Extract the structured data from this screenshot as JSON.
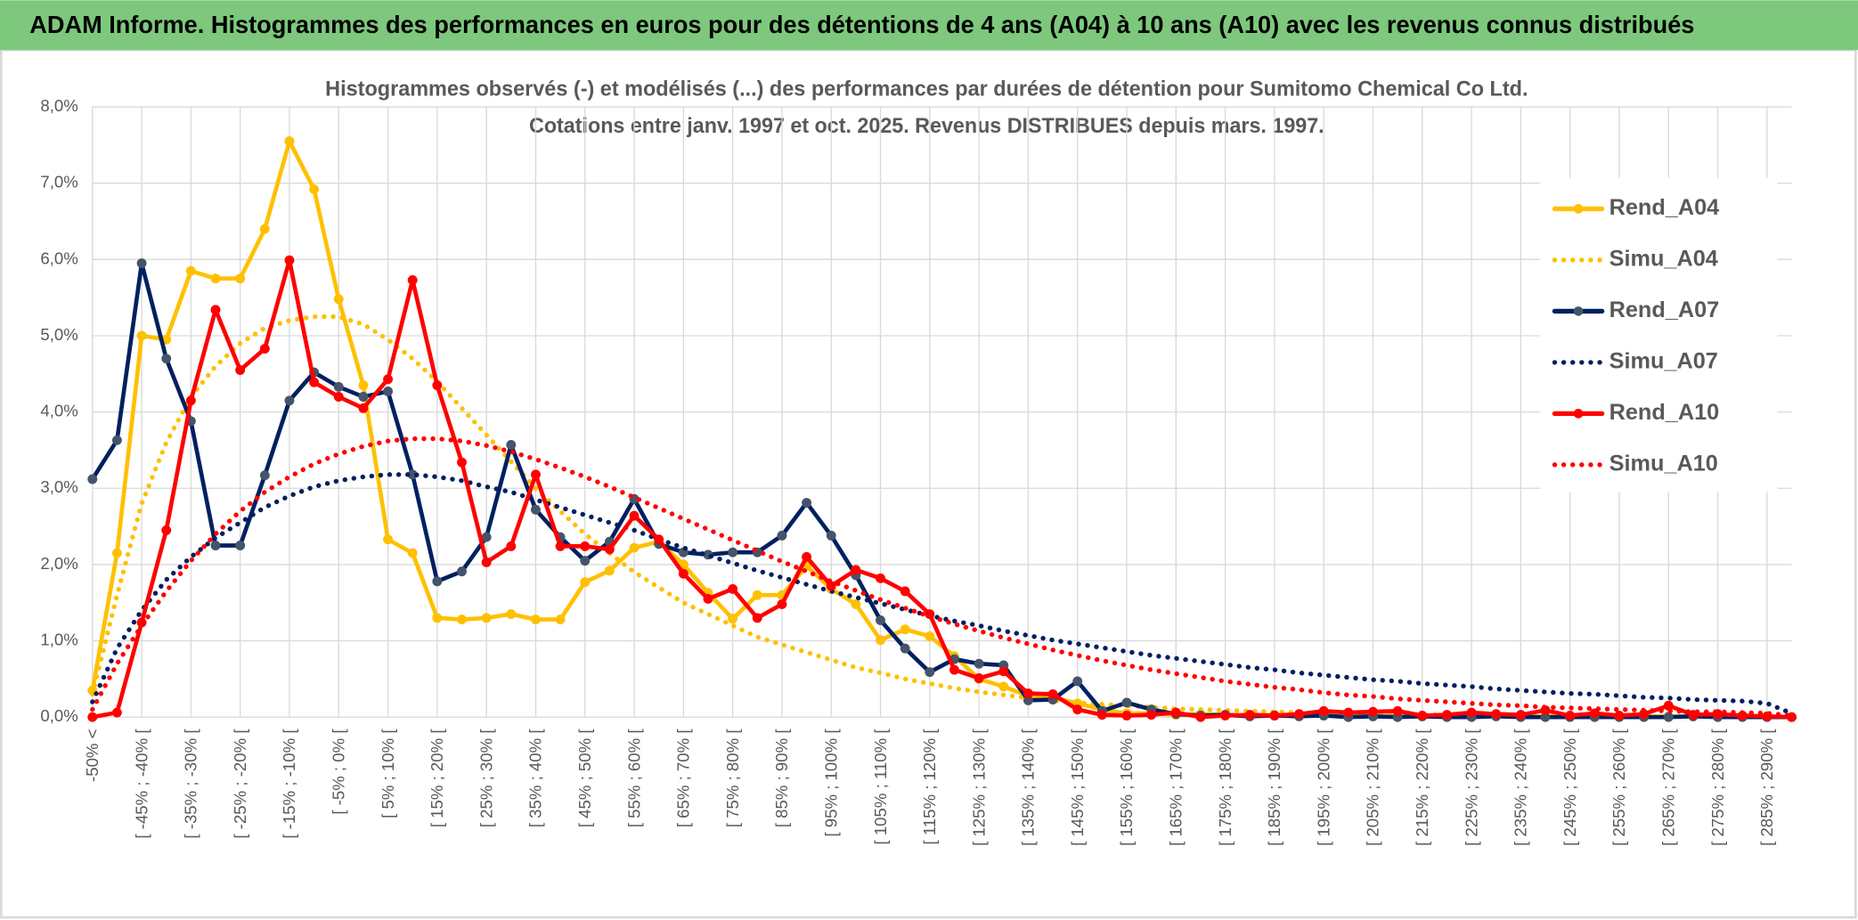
{
  "chart_data": {
    "type": "line",
    "title": "ADAM Informe. Histogrammes des performances en euros pour des détentions de 4 ans (A04) à 10 ans (A10) avec les revenus connus distribués",
    "subtitle": [
      "Histogrammes observés (-) et modélisés (...) des performances par durées de détention pour Sumitomo Chemical Co Ltd.",
      "Cotations entre janv. 1997 et oct. 2025. Revenus DISTRIBUES depuis mars. 1997."
    ],
    "categories": [
      "-50% <",
      null,
      "[ -45% ; -40% [",
      null,
      "[ -35% ; -30% [",
      null,
      "[ -25% ; -20% [",
      null,
      "[ -15% ; -10% [",
      null,
      "[ -5% ; 0% [",
      null,
      "[ 5% ; 10% [",
      null,
      "[ 15% ; 20% [",
      null,
      "[ 25% ; 30% [",
      null,
      "[ 35% ; 40% [",
      null,
      "[ 45% ; 50% [",
      null,
      "[ 55% ; 60% [",
      null,
      "[ 65% ; 70% [",
      null,
      "[ 75% ; 80% [",
      null,
      "[ 85% ; 90% [",
      null,
      "[ 95% ; 100% [",
      null,
      "[ 105% ; 110% [",
      null,
      "[ 115% ; 120% [",
      null,
      "[ 125% ; 130% [",
      null,
      "[ 135% ; 140% [",
      null,
      "[ 145% ; 150% [",
      null,
      "[ 155% ; 160% [",
      null,
      "[ 165% ; 170% [",
      null,
      "[ 175% ; 180% [",
      null,
      "[ 185% ; 190% [",
      null,
      "[ 195% ; 200% [",
      null,
      "[ 205% ; 210% [",
      null,
      "[ 215% ; 220% [",
      null,
      "[ 225% ; 230% [",
      null,
      "[ 235% ; 240% [",
      null,
      "[ 245% ; 250% [",
      null,
      "[ 255% ; 260% [",
      null,
      "[ 265% ; 270% [",
      null,
      "[ 275% ; 280% [",
      null,
      "[ 285% ; 290% [",
      null
    ],
    "ylim": [
      0,
      8
    ],
    "yticks": [
      {
        "value": 0,
        "label": "0,0%"
      },
      {
        "value": 1,
        "label": "1,0%"
      },
      {
        "value": 2,
        "label": "2,0%"
      },
      {
        "value": 3,
        "label": "3,0%"
      },
      {
        "value": 4,
        "label": "4,0%"
      },
      {
        "value": 5,
        "label": "5,0%"
      },
      {
        "value": 6,
        "label": "6,0%"
      },
      {
        "value": 7,
        "label": "7,0%"
      },
      {
        "value": 8,
        "label": "8,0%"
      }
    ],
    "grid": true,
    "legend": "right",
    "series": [
      {
        "name": "Rend_A04",
        "color": "#ffc000",
        "style": "solid",
        "values": [
          0.35,
          2.15,
          5.0,
          4.95,
          5.85,
          5.75,
          5.75,
          6.4,
          7.55,
          6.92,
          5.48,
          4.35,
          2.33,
          2.15,
          1.3,
          1.28,
          1.3,
          1.35,
          1.28,
          1.28,
          1.77,
          1.92,
          2.22,
          2.3,
          2.0,
          1.63,
          1.29,
          1.6,
          1.6,
          1.98,
          1.68,
          1.48,
          1.01,
          1.15,
          1.06,
          0.8,
          0.5,
          0.4,
          0.28,
          0.26,
          0.18,
          0.1,
          0.05,
          0.05,
          0.03,
          0.04,
          0.03,
          0.02,
          0.03,
          0.02,
          0.02,
          0.02,
          0.01,
          0.02,
          0.01,
          0.01,
          0.01,
          0.02,
          0.01,
          0.01,
          0.01,
          0.01,
          0.01,
          0.01,
          0.01,
          0.01,
          0.01,
          0.01,
          0.01,
          0.0
        ]
      },
      {
        "name": "Simu_A04",
        "color": "#ffc000",
        "style": "dotted",
        "values": [
          0.3,
          1.6,
          2.8,
          3.6,
          4.2,
          4.6,
          4.9,
          5.1,
          5.2,
          5.25,
          5.25,
          5.15,
          4.95,
          4.7,
          4.4,
          4.05,
          3.7,
          3.35,
          3.0,
          2.7,
          2.4,
          2.15,
          1.9,
          1.7,
          1.5,
          1.35,
          1.2,
          1.05,
          0.95,
          0.85,
          0.75,
          0.65,
          0.58,
          0.5,
          0.44,
          0.38,
          0.33,
          0.29,
          0.25,
          0.22,
          0.19,
          0.17,
          0.15,
          0.13,
          0.11,
          0.1,
          0.09,
          0.08,
          0.07,
          0.06,
          0.05,
          0.045,
          0.04,
          0.035,
          0.03,
          0.028,
          0.025,
          0.022,
          0.02,
          0.018,
          0.016,
          0.014,
          0.012,
          0.011,
          0.01,
          0.009,
          0.008,
          0.007,
          0.006,
          0.005
        ]
      },
      {
        "name": "Rend_A07",
        "color": "#002060",
        "marker": "#44546a",
        "style": "solid",
        "values": [
          3.12,
          3.63,
          5.95,
          4.7,
          3.88,
          2.25,
          2.25,
          3.17,
          4.15,
          4.52,
          4.33,
          4.2,
          4.27,
          3.18,
          1.78,
          1.91,
          2.36,
          3.57,
          2.72,
          2.36,
          2.05,
          2.3,
          2.86,
          2.27,
          2.16,
          2.13,
          2.16,
          2.16,
          2.38,
          2.81,
          2.38,
          1.86,
          1.27,
          0.9,
          0.59,
          0.76,
          0.7,
          0.68,
          0.22,
          0.23,
          0.47,
          0.08,
          0.19,
          0.1,
          0.04,
          0.02,
          0.03,
          0.01,
          0.02,
          0.01,
          0.02,
          0,
          0.01,
          0,
          0.01,
          0,
          0,
          0.01,
          0,
          0,
          0,
          0,
          0,
          0,
          0,
          0.01,
          0,
          0,
          0,
          0
        ]
      },
      {
        "name": "Simu_A07",
        "color": "#002060",
        "style": "dotted",
        "values": [
          0.2,
          0.9,
          1.4,
          1.8,
          2.1,
          2.35,
          2.55,
          2.75,
          2.9,
          3.02,
          3.1,
          3.15,
          3.18,
          3.18,
          3.15,
          3.1,
          3.02,
          2.95,
          2.85,
          2.75,
          2.65,
          2.55,
          2.45,
          2.33,
          2.22,
          2.12,
          2.02,
          1.92,
          1.83,
          1.74,
          1.65,
          1.57,
          1.49,
          1.41,
          1.33,
          1.26,
          1.2,
          1.13,
          1.07,
          1.01,
          0.96,
          0.91,
          0.86,
          0.81,
          0.77,
          0.73,
          0.69,
          0.65,
          0.62,
          0.58,
          0.55,
          0.52,
          0.49,
          0.47,
          0.44,
          0.42,
          0.4,
          0.37,
          0.35,
          0.33,
          0.31,
          0.3,
          0.28,
          0.26,
          0.25,
          0.23,
          0.22,
          0.21,
          0.18,
          0.05
        ]
      },
      {
        "name": "Rend_A10",
        "color": "#ff0000",
        "style": "solid",
        "values": [
          0,
          0.06,
          1.24,
          2.45,
          4.15,
          5.34,
          4.55,
          4.83,
          5.99,
          4.39,
          4.2,
          4.05,
          4.43,
          5.73,
          4.35,
          3.34,
          2.03,
          2.24,
          3.18,
          2.24,
          2.24,
          2.2,
          2.64,
          2.33,
          1.88,
          1.55,
          1.68,
          1.3,
          1.48,
          2.1,
          1.72,
          1.93,
          1.82,
          1.65,
          1.35,
          0.62,
          0.51,
          0.6,
          0.31,
          0.3,
          0.1,
          0.03,
          0.02,
          0.03,
          0.06,
          0,
          0.02,
          0.03,
          0.02,
          0.04,
          0.08,
          0.06,
          0.07,
          0.08,
          0.02,
          0.03,
          0.06,
          0.04,
          0.03,
          0.09,
          0.02,
          0.05,
          0.02,
          0.04,
          0.15,
          0.03,
          0.04,
          0.02,
          0.01,
          0
        ]
      },
      {
        "name": "Simu_A10",
        "color": "#ff0000",
        "style": "dotted",
        "values": [
          0.1,
          0.7,
          1.2,
          1.65,
          2.05,
          2.4,
          2.7,
          2.95,
          3.15,
          3.32,
          3.45,
          3.55,
          3.62,
          3.65,
          3.65,
          3.62,
          3.56,
          3.48,
          3.38,
          3.27,
          3.15,
          3.02,
          2.88,
          2.74,
          2.6,
          2.46,
          2.32,
          2.18,
          2.04,
          1.91,
          1.78,
          1.66,
          1.54,
          1.43,
          1.32,
          1.22,
          1.13,
          1.04,
          0.96,
          0.88,
          0.81,
          0.74,
          0.68,
          0.62,
          0.57,
          0.52,
          0.47,
          0.43,
          0.39,
          0.36,
          0.32,
          0.29,
          0.27,
          0.24,
          0.22,
          0.2,
          0.18,
          0.16,
          0.15,
          0.13,
          0.12,
          0.11,
          0.1,
          0.09,
          0.08,
          0.07,
          0.07,
          0.06,
          0.05,
          0.02
        ]
      }
    ]
  }
}
